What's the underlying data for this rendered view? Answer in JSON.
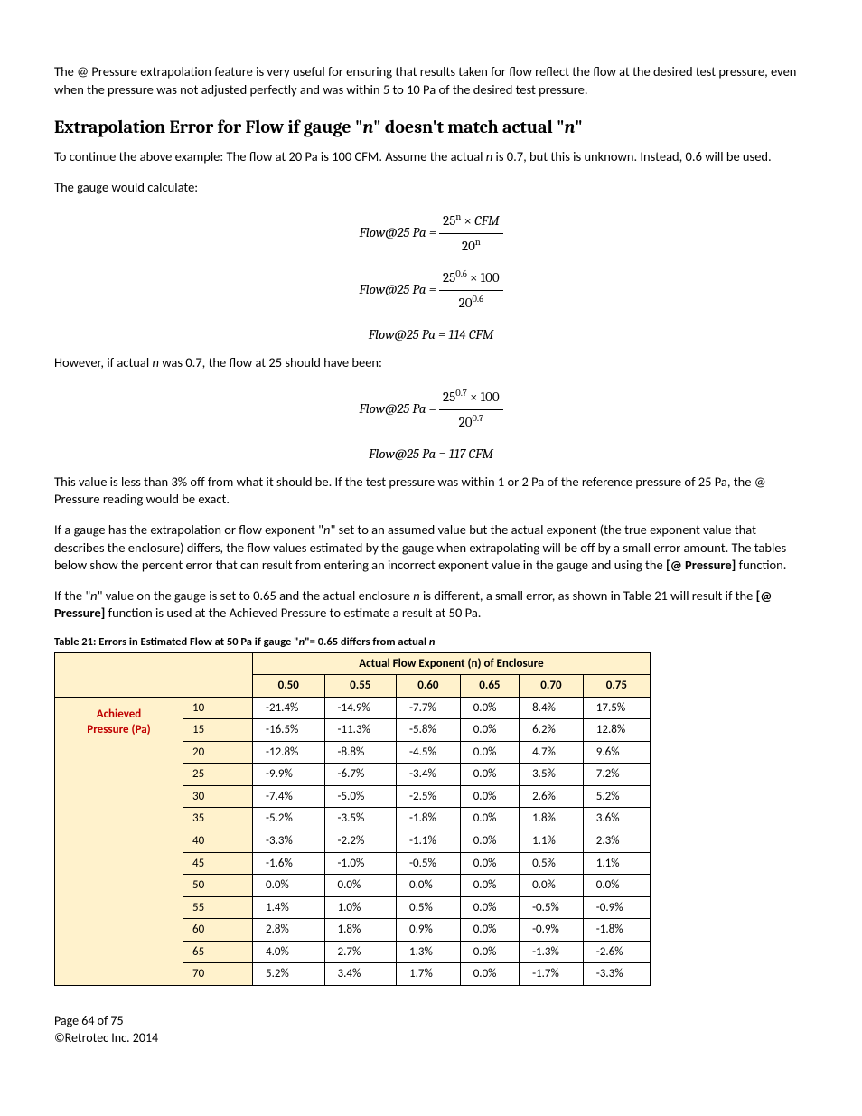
{
  "para1": "The @ Pressure extrapolation feature is very useful for ensuring that results taken for flow reflect the flow at the desired test pressure, even when the pressure was not adjusted perfectly and was within 5 to 10 Pa of the desired test pressure.",
  "heading": "Extrapolation Error for Flow if gauge \"n\" doesn't match actual \"n\"",
  "para2a": "To continue the above example:  The flow at 20 Pa is 100 CFM.  Assume the actual ",
  "para2b": " is 0.7, but this is unknown.  Instead, 0.6 will be used.",
  "para3": "The gauge would calculate:",
  "eq1_lhs": "Flow@25 Pa = ",
  "eq1_num": "25ⁿ × CFM",
  "eq1_den": "20ⁿ",
  "eq2_num": "25⁰·⁶ × 100",
  "eq2_den": "20⁰·⁶",
  "eq3": "Flow@25 Pa =  114 CFM",
  "para4a": "However, if actual ",
  "para4b": " was 0.7, the flow at 25 should have been:",
  "eq4_num": "25⁰·⁷ × 100",
  "eq4_den": "20⁰·⁷",
  "eq5": "Flow@25 Pa =  117 CFM",
  "para5": "This value is less than 3% off from what it should be.  If the test pressure was within 1 or 2 Pa of the reference pressure of 25 Pa, the @ Pressure reading would be exact.",
  "para6a": "If a gauge has the extrapolation or flow exponent \"",
  "para6b": "\" set to an assumed value but the actual exponent (the true exponent value that describes the enclosure) differs, the flow values estimated by the gauge when extrapolating will be off by a small error amount.  The tables below show the percent error that can result from entering an incorrect exponent value in the gauge and using the ",
  "para6c": " function.",
  "at_pressure": "[@ Pressure]",
  "para7a": "If the \"",
  "para7b": "\" value on the gauge is set to 0.65 and the actual enclosure ",
  "para7c": " is different, a small error, as shown in Table 21 will result if the ",
  "para7d": " function is used at the Achieved Pressure to estimate a result at 50 Pa.",
  "table_caption_a": "Table 21:  Errors in Estimated Flow at 50 Pa if gauge \"",
  "table_caption_b": "\"= 0.65 differs from actual ",
  "table": {
    "header_span": "Actual Flow Exponent (n) of Enclosure",
    "cols": [
      "0.50",
      "0.55",
      "0.60",
      "0.65",
      "0.70",
      "0.75"
    ],
    "row_label_1": "Achieved",
    "row_label_2": "Pressure (Pa)",
    "pressures": [
      "10",
      "15",
      "20",
      "25",
      "30",
      "35",
      "40",
      "45",
      "50",
      "55",
      "60",
      "65",
      "70"
    ],
    "rows": [
      [
        "-21.4%",
        "-14.9%",
        "-7.7%",
        "0.0%",
        "8.4%",
        "17.5%"
      ],
      [
        "-16.5%",
        "-11.3%",
        "-5.8%",
        "0.0%",
        "6.2%",
        "12.8%"
      ],
      [
        "-12.8%",
        "-8.8%",
        "-4.5%",
        "0.0%",
        "4.7%",
        "9.6%"
      ],
      [
        "-9.9%",
        "-6.7%",
        "-3.4%",
        "0.0%",
        "3.5%",
        "7.2%"
      ],
      [
        "-7.4%",
        "-5.0%",
        "-2.5%",
        "0.0%",
        "2.6%",
        "5.2%"
      ],
      [
        "-5.2%",
        "-3.5%",
        "-1.8%",
        "0.0%",
        "1.8%",
        "3.6%"
      ],
      [
        "-3.3%",
        "-2.2%",
        "-1.1%",
        "0.0%",
        "1.1%",
        "2.3%"
      ],
      [
        "-1.6%",
        "-1.0%",
        "-0.5%",
        "0.0%",
        "0.5%",
        "1.1%"
      ],
      [
        "0.0%",
        "0.0%",
        "0.0%",
        "0.0%",
        "0.0%",
        "0.0%"
      ],
      [
        "1.4%",
        "1.0%",
        "0.5%",
        "0.0%",
        "-0.5%",
        "-0.9%"
      ],
      [
        "2.8%",
        "1.8%",
        "0.9%",
        "0.0%",
        "-0.9%",
        "-1.8%"
      ],
      [
        "4.0%",
        "2.7%",
        "1.3%",
        "0.0%",
        "-1.3%",
        "-2.6%"
      ],
      [
        "5.2%",
        "3.4%",
        "1.7%",
        "0.0%",
        "-1.7%",
        "-3.3%"
      ]
    ]
  },
  "footer1": "Page 64 of 75",
  "footer2": "©Retrotec Inc. 2014",
  "n": "n"
}
